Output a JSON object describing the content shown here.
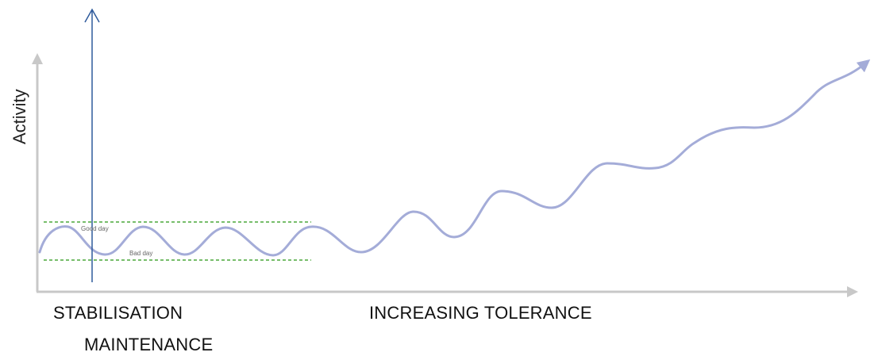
{
  "axes": {
    "y_label": "Activity",
    "axis_color": "#c8c8c8",
    "marker_arrow_color": "#2f5b9c"
  },
  "bands": {
    "good_label": "Good day",
    "bad_label": "Bad day",
    "band_color": "#4aa83a"
  },
  "curve": {
    "color": "#a4acd8"
  },
  "phases": {
    "first": "STABILISATION",
    "second": "MAINTENANCE",
    "third": "INCREASING TOLERANCE"
  }
}
